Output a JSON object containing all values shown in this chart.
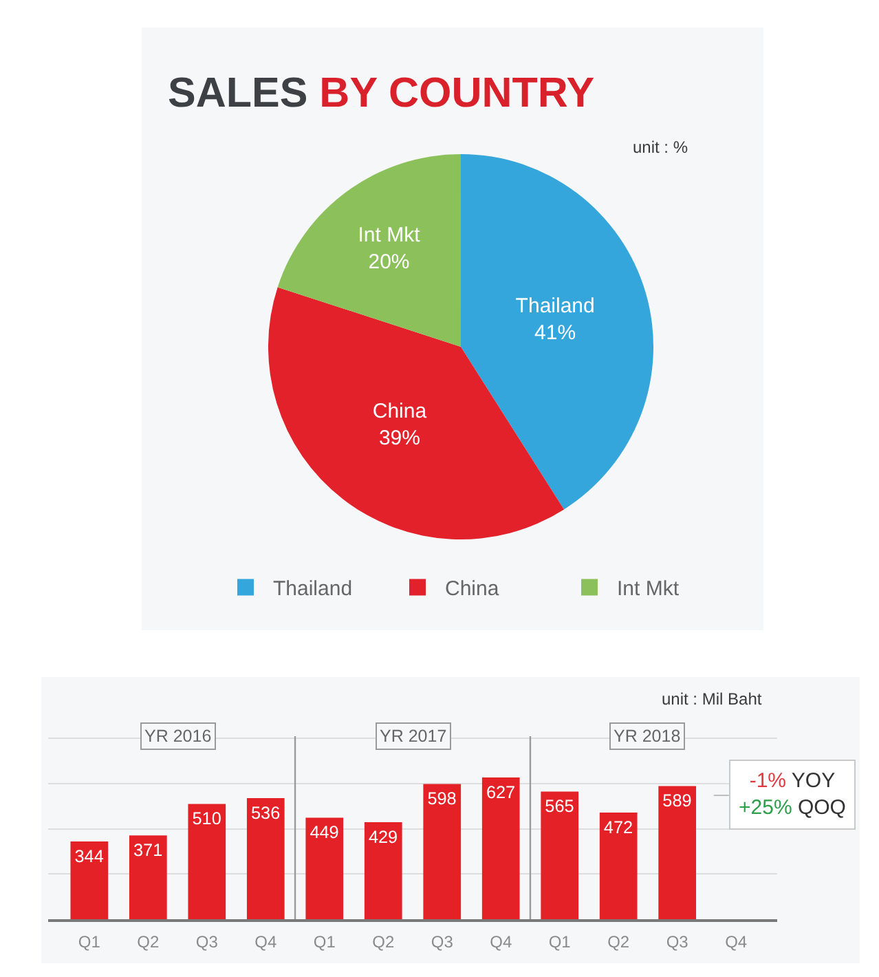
{
  "chart_data": [
    {
      "type": "pie",
      "title": "SALES BY COUNTRY",
      "categories": [
        "Thailand",
        "China",
        "Int Mkt"
      ],
      "values": [
        41,
        39,
        20
      ],
      "colors": [
        "#35a6db",
        "#e2212b",
        "#8cc05a"
      ],
      "value_labels": [
        "41%",
        "39%",
        "20%"
      ],
      "legend": "bottom",
      "annotations": [
        "unit : %"
      ]
    },
    {
      "type": "bar",
      "categories": [
        "Q1",
        "Q2",
        "Q3",
        "Q4",
        "Q1",
        "Q2",
        "Q3",
        "Q4",
        "Q1",
        "Q2",
        "Q3",
        "Q4"
      ],
      "values": [
        344,
        371,
        510,
        536,
        449,
        429,
        598,
        627,
        565,
        472,
        589,
        null
      ],
      "color": "#e42126",
      "ylabel": "unit : Mil Baht",
      "ylim": [
        0,
        810
      ],
      "yticks": [
        {
          "value": 0,
          "label": null
        },
        {
          "value": 200,
          "label": null
        },
        {
          "value": 400,
          "label": null
        },
        {
          "value": 600,
          "label": null
        },
        {
          "value": 800,
          "label": null
        }
      ],
      "grid": "y",
      "tick_labels": "x",
      "data_labels": true,
      "annotations": [
        "YR 2016",
        "YR 2017",
        "YR 2018",
        "-1% YOY\n+25% QOQ"
      ]
    }
  ]
}
